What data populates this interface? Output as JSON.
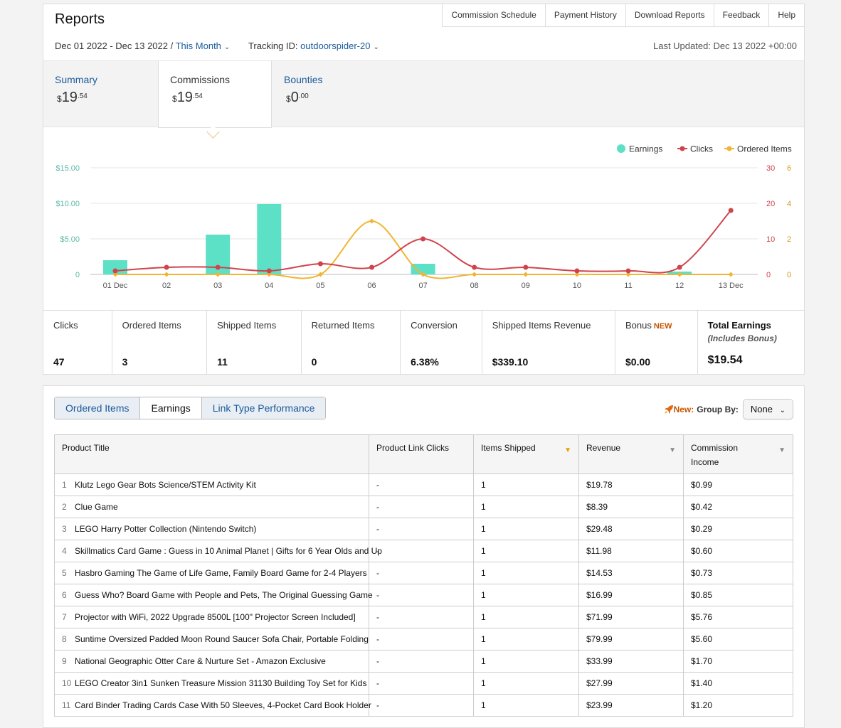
{
  "header": {
    "title": "Reports",
    "links": [
      "Commission Schedule",
      "Payment History",
      "Download Reports",
      "Feedback",
      "Help"
    ],
    "date_range": "Dec 01 2022 - Dec 13 2022",
    "date_sep": " / ",
    "period": "This Month",
    "tracking_label": "Tracking ID:",
    "tracking_id": "outdoorspider-20",
    "last_updated": "Last Updated: Dec 13 2022 +00:00"
  },
  "summary_tabs": [
    {
      "label": "Summary",
      "currency": "$",
      "whole": "19",
      "cents": ".54"
    },
    {
      "label": "Commissions",
      "currency": "$",
      "whole": "19",
      "cents": ".54"
    },
    {
      "label": "Bounties",
      "currency": "$",
      "whole": "0",
      "cents": ".00"
    }
  ],
  "chart_data": {
    "type": "bar+line",
    "legend": [
      "Earnings",
      "Clicks",
      "Ordered Items"
    ],
    "legend_placement": "top-right",
    "colors": {
      "earnings": "#5ce1c6",
      "clicks": "#d0434d",
      "ordered": "#f2b533"
    },
    "categories": [
      "01 Dec",
      "02",
      "03",
      "04",
      "05",
      "06",
      "07",
      "08",
      "09",
      "10",
      "11",
      "12",
      "13 Dec"
    ],
    "series": [
      {
        "name": "Earnings",
        "axis": "left",
        "values": [
          2.0,
          0,
          5.6,
          9.9,
          0,
          0,
          1.5,
          0,
          0,
          0,
          0,
          0.4,
          0
        ]
      },
      {
        "name": "Clicks",
        "axis": "right1",
        "values": [
          1,
          2,
          2,
          1,
          3,
          2,
          10,
          2,
          2,
          1,
          1,
          2,
          18
        ]
      },
      {
        "name": "Ordered Items",
        "axis": "right2",
        "values": [
          0,
          0,
          0,
          0,
          0,
          3,
          0,
          0,
          0,
          0,
          0,
          0,
          0
        ]
      }
    ],
    "left_axis": {
      "ticks": [
        "0",
        "$5.00",
        "$10.00",
        "$15.00"
      ],
      "max": 15
    },
    "right_axis_1": {
      "ticks": [
        "0",
        "10",
        "20",
        "30"
      ],
      "max": 30
    },
    "right_axis_2": {
      "ticks": [
        "0",
        "2",
        "4",
        "6"
      ],
      "max": 6
    },
    "grid": true
  },
  "stats": [
    {
      "label": "Clicks",
      "value": "47"
    },
    {
      "label": "Ordered Items",
      "value": "3"
    },
    {
      "label": "Shipped Items",
      "value": "11"
    },
    {
      "label": "Returned Items",
      "value": "0"
    },
    {
      "label": "Conversion",
      "value": "6.38%"
    },
    {
      "label": "Shipped Items Revenue",
      "value": "$339.10"
    },
    {
      "label": "Bonus",
      "badge": "NEW",
      "value": "$0.00"
    },
    {
      "label": "Total Earnings",
      "sub": "(Includes Bonus)",
      "value": "$19.54"
    }
  ],
  "report_tabs": [
    "Ordered Items",
    "Earnings",
    "Link Type Performance"
  ],
  "group_by": {
    "new_label": "New:",
    "label": "Group By:",
    "value": "None"
  },
  "table": {
    "headers": [
      "Product Title",
      "Product Link Clicks",
      "Items Shipped",
      "Revenue",
      "Commission Income"
    ],
    "rows": [
      {
        "n": "1",
        "title": "Klutz Lego Gear Bots Science/STEM Activity Kit",
        "clicks": "-",
        "shipped": "1",
        "revenue": "$19.78",
        "commission": "$0.99"
      },
      {
        "n": "2",
        "title": "Clue Game",
        "clicks": "-",
        "shipped": "1",
        "revenue": "$8.39",
        "commission": "$0.42"
      },
      {
        "n": "3",
        "title": "LEGO Harry Potter Collection (Nintendo Switch)",
        "clicks": "-",
        "shipped": "1",
        "revenue": "$29.48",
        "commission": "$0.29"
      },
      {
        "n": "4",
        "title": "Skillmatics Card Game : Guess in 10 Animal Planet | Gifts for 6 Year Olds and Up",
        "clicks": "-",
        "shipped": "1",
        "revenue": "$11.98",
        "commission": "$0.60"
      },
      {
        "n": "5",
        "title": "Hasbro Gaming The Game of Life Game, Family Board Game for 2-4 Players",
        "clicks": "-",
        "shipped": "1",
        "revenue": "$14.53",
        "commission": "$0.73"
      },
      {
        "n": "6",
        "title": "Guess Who? Board Game with People and Pets, The Original Guessing Game",
        "clicks": "-",
        "shipped": "1",
        "revenue": "$16.99",
        "commission": "$0.85"
      },
      {
        "n": "7",
        "title": "Projector with WiFi, 2022 Upgrade 8500L [100\" Projector Screen Included]",
        "clicks": "-",
        "shipped": "1",
        "revenue": "$71.99",
        "commission": "$5.76"
      },
      {
        "n": "8",
        "title": "Suntime Oversized Padded Moon Round Saucer Sofa Chair, Portable Folding",
        "clicks": "-",
        "shipped": "1",
        "revenue": "$79.99",
        "commission": "$5.60"
      },
      {
        "n": "9",
        "title": "National Geographic Otter Care & Nurture Set - Amazon Exclusive",
        "clicks": "-",
        "shipped": "1",
        "revenue": "$33.99",
        "commission": "$1.70"
      },
      {
        "n": "10",
        "title": "LEGO Creator 3in1 Sunken Treasure Mission 31130 Building Toy Set for Kids",
        "clicks": "-",
        "shipped": "1",
        "revenue": "$27.99",
        "commission": "$1.40"
      },
      {
        "n": "11",
        "title": "Card Binder Trading Cards Case With 50 Sleeves, 4-Pocket Card Book Holder",
        "clicks": "-",
        "shipped": "1",
        "revenue": "$23.99",
        "commission": "$1.20"
      }
    ]
  }
}
